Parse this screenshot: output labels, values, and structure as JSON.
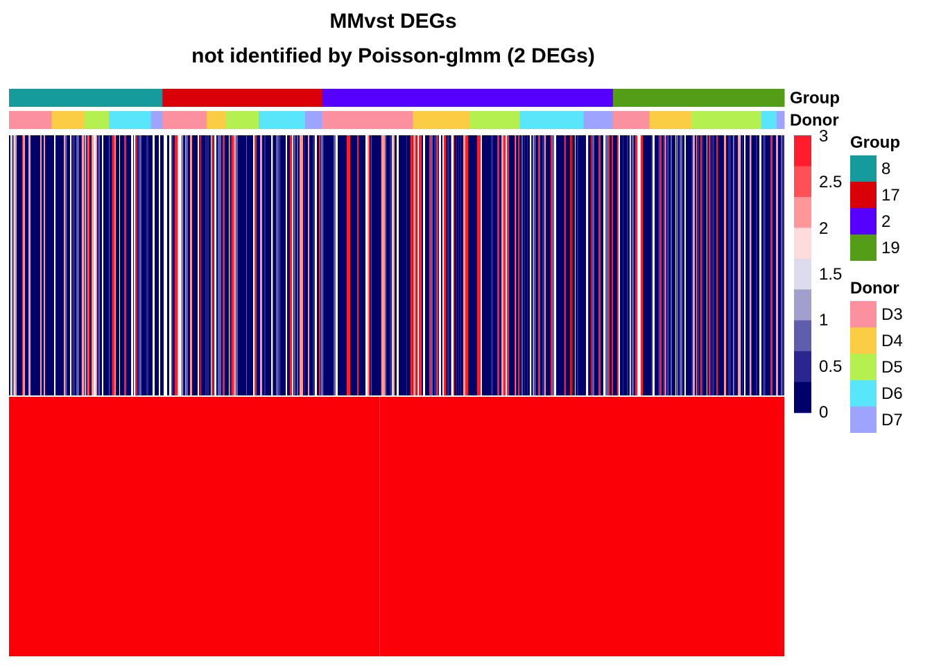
{
  "chart_data": {
    "type": "heatmap",
    "title": "MMvst DEGs",
    "subtitle": "not identified by Poisson-glmm (2 DEGs)",
    "rows": 2,
    "row_split": "2 row slices",
    "column_split": "2 column slices",
    "annotations": [
      {
        "name": "Group",
        "segments": [
          {
            "level": "8",
            "from": 0.0,
            "to": 0.198
          },
          {
            "level": "17",
            "from": 0.198,
            "to": 0.404
          },
          {
            "level": "2",
            "from": 0.404,
            "to": 0.779
          },
          {
            "level": "19",
            "from": 0.779,
            "to": 1.0
          }
        ]
      },
      {
        "name": "Donor",
        "segments": [
          {
            "level": "D3",
            "from": 0.0,
            "to": 0.055
          },
          {
            "level": "D4",
            "from": 0.055,
            "to": 0.097
          },
          {
            "level": "D5",
            "from": 0.097,
            "to": 0.129
          },
          {
            "level": "D6",
            "from": 0.129,
            "to": 0.183
          },
          {
            "level": "D7",
            "from": 0.183,
            "to": 0.198
          },
          {
            "level": "D3",
            "from": 0.198,
            "to": 0.255
          },
          {
            "level": "D4",
            "from": 0.255,
            "to": 0.28
          },
          {
            "level": "D5",
            "from": 0.28,
            "to": 0.322
          },
          {
            "level": "D6",
            "from": 0.322,
            "to": 0.382
          },
          {
            "level": "D7",
            "from": 0.382,
            "to": 0.404
          },
          {
            "level": "D3",
            "from": 0.404,
            "to": 0.521
          },
          {
            "level": "D4",
            "from": 0.521,
            "to": 0.594
          },
          {
            "level": "D5",
            "from": 0.594,
            "to": 0.659
          },
          {
            "level": "D6",
            "from": 0.659,
            "to": 0.741
          },
          {
            "level": "D7",
            "from": 0.741,
            "to": 0.779
          },
          {
            "level": "D3",
            "from": 0.779,
            "to": 0.826
          },
          {
            "level": "D4",
            "from": 0.826,
            "to": 0.88
          },
          {
            "level": "D5",
            "from": 0.88,
            "to": 0.97
          },
          {
            "level": "D6",
            "from": 0.97,
            "to": 0.99
          },
          {
            "level": "D7",
            "from": 0.99,
            "to": 1.0
          }
        ]
      }
    ],
    "row_1": "dense per-cell stripes with values mostly 0-0.5 (dark navy), frequent 3 (red) and occasional white/pink",
    "row_2_value": 3,
    "color_scale": {
      "min": 0,
      "max": 3,
      "ticks": [
        "3",
        "2.5",
        "2",
        "1.5",
        "1",
        "0.5",
        "0"
      ],
      "steps": [
        "#ff1c2d",
        "#ff5057",
        "#ff9699",
        "#fedbdc",
        "#dcdcee",
        "#a09fce",
        "#5f5eae",
        "#2b258f",
        "#00006b"
      ]
    },
    "legends": [
      {
        "title": "Group",
        "items": [
          {
            "label": "8",
            "color": "#159b9b"
          },
          {
            "label": "17",
            "color": "#d90007"
          },
          {
            "label": "2",
            "color": "#5600ff"
          },
          {
            "label": "19",
            "color": "#539d17"
          }
        ]
      },
      {
        "title": "Donor",
        "items": [
          {
            "label": "D3",
            "color": "#fb919e"
          },
          {
            "label": "D4",
            "color": "#fbcd45"
          },
          {
            "label": "D5",
            "color": "#b4f150"
          },
          {
            "label": "D6",
            "color": "#5ae6fa"
          },
          {
            "label": "D7",
            "color": "#9da4fd"
          }
        ]
      }
    ],
    "annotation_labels": [
      "Group",
      "Donor"
    ]
  }
}
